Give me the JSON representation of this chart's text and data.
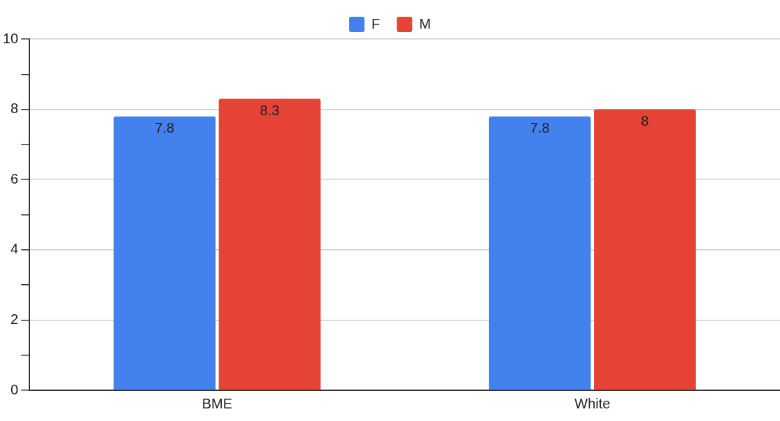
{
  "chart_data": {
    "type": "bar",
    "categories": [
      "BME",
      "White"
    ],
    "series": [
      {
        "name": "F",
        "color": "#4382ec",
        "values": [
          7.8,
          7.8
        ]
      },
      {
        "name": "M",
        "color": "#e54335",
        "values": [
          8.3,
          8
        ]
      }
    ],
    "ylim": [
      0,
      10
    ],
    "yticks": [
      0,
      {
        "value": 1,
        "label": null
      },
      2,
      {
        "value": 3,
        "label": null
      },
      4,
      {
        "value": 5,
        "label": null
      },
      6,
      {
        "value": 7,
        "label": null
      },
      8,
      {
        "value": 9,
        "label": null
      },
      10
    ],
    "grid": "y",
    "legend": "top",
    "data_labels": true
  }
}
